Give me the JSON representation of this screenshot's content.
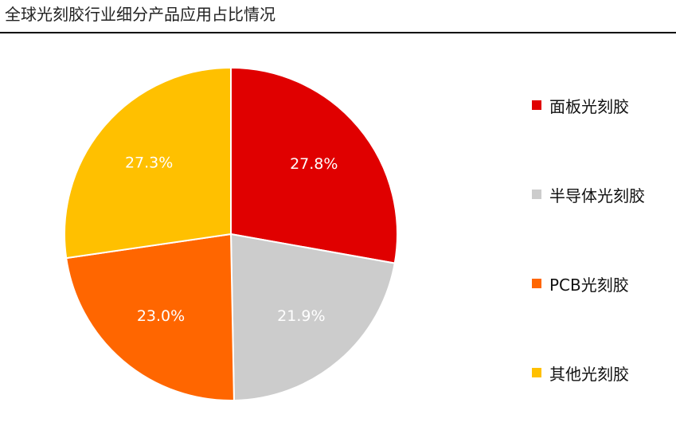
{
  "chart_data": {
    "type": "pie",
    "title": "全球光刻胶行业细分产品应用占比情况",
    "categories": [
      "面板光刻胶",
      "半导体光刻胶",
      "PCB光刻胶",
      "其他光刻胶"
    ],
    "values": [
      27.8,
      21.9,
      23.0,
      27.3
    ],
    "data_labels": [
      "27.8%",
      "21.9%",
      "23.0%",
      "27.3%"
    ],
    "colors": [
      "#E00000",
      "#CCCCCC",
      "#FF6600",
      "#FFC000"
    ],
    "start_angle_deg": 0,
    "direction": "clockwise",
    "legend_position": "right"
  }
}
